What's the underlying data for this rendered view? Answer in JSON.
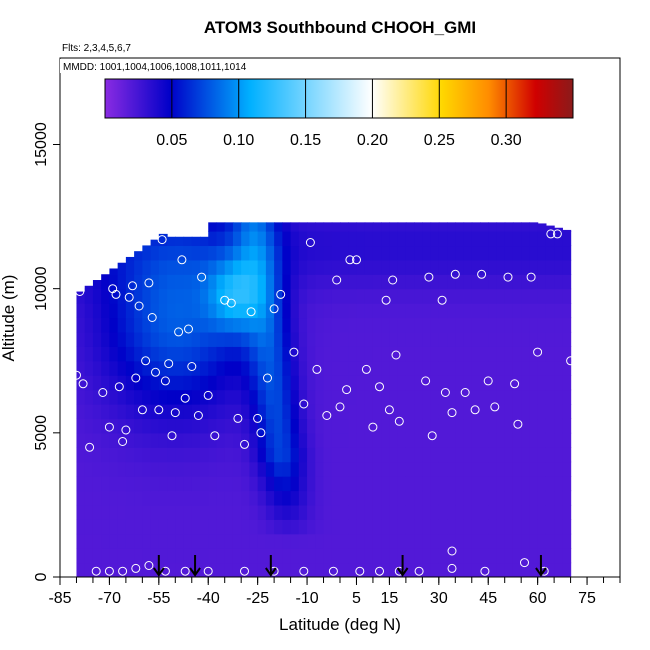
{
  "chart_data": {
    "type": "heatmap",
    "title": "ATOM3 Southbound CHOOH_GMI",
    "flights_note": "Flts: 2,3,4,5,6,7",
    "dates_note": "MMDD: 1001,1004,1006,1008,1011,1014",
    "xlabel": "Latitude (deg N)",
    "ylabel": "Altitude (m)",
    "xlim": [
      -85,
      85
    ],
    "ylim": [
      0,
      18000
    ],
    "x_ticks": [
      -85,
      -70,
      -55,
      -40,
      -25,
      -10,
      5,
      15,
      30,
      45,
      60,
      75
    ],
    "y_ticks": [
      0,
      5000,
      10000,
      15000
    ],
    "colorbar": {
      "range": [
        0.0,
        0.35
      ],
      "ticks": [
        0.05,
        0.1,
        0.15,
        0.2,
        0.25,
        0.3
      ],
      "tick_labels": [
        "0.05",
        "0.10",
        "0.15",
        "0.20",
        "0.25",
        "0.30"
      ],
      "colors": [
        "#8a2be2",
        "#0000c8",
        "#00b0ff",
        "#ffffff",
        "#ffd700",
        "#ff8c00",
        "#d00000",
        "#8b1a1a"
      ]
    },
    "field_extent": {
      "lat": [
        -80,
        70
      ],
      "alt": [
        0,
        12500
      ]
    },
    "features": [
      {
        "name": "mid-latitude southern column high values",
        "lat_range": [
          -70,
          -30
        ],
        "alt_range": [
          2000,
          12000
        ],
        "value": 0.12
      },
      {
        "name": "equatorial wedge",
        "lat_range": [
          -35,
          -5
        ],
        "alt_range": [
          1000,
          12500
        ],
        "value": 0.1
      }
    ],
    "arrow_latitudes": [
      -55,
      -44,
      -21,
      19,
      61
    ],
    "observation_points": [
      {
        "lat": -80,
        "alt": 7000
      },
      {
        "lat": -79,
        "alt": 9900
      },
      {
        "lat": -78,
        "alt": 6700
      },
      {
        "lat": -76,
        "alt": 4500
      },
      {
        "lat": -72,
        "alt": 6400
      },
      {
        "lat": -70,
        "alt": 5200
      },
      {
        "lat": -69,
        "alt": 10000
      },
      {
        "lat": -68,
        "alt": 9800
      },
      {
        "lat": -67,
        "alt": 6600
      },
      {
        "lat": -66,
        "alt": 4700
      },
      {
        "lat": -65,
        "alt": 5100
      },
      {
        "lat": -64,
        "alt": 9700
      },
      {
        "lat": -63,
        "alt": 10100
      },
      {
        "lat": -62,
        "alt": 6900
      },
      {
        "lat": -61,
        "alt": 9400
      },
      {
        "lat": -60,
        "alt": 5800
      },
      {
        "lat": -59,
        "alt": 7500
      },
      {
        "lat": -58,
        "alt": 10200
      },
      {
        "lat": -57,
        "alt": 9000
      },
      {
        "lat": -56,
        "alt": 7100
      },
      {
        "lat": -55,
        "alt": 5800
      },
      {
        "lat": -54,
        "alt": 11700
      },
      {
        "lat": -53,
        "alt": 6800
      },
      {
        "lat": -52,
        "alt": 7400
      },
      {
        "lat": -51,
        "alt": 4900
      },
      {
        "lat": -50,
        "alt": 5700
      },
      {
        "lat": -49,
        "alt": 8500
      },
      {
        "lat": -48,
        "alt": 11000
      },
      {
        "lat": -47,
        "alt": 6200
      },
      {
        "lat": -46,
        "alt": 8600
      },
      {
        "lat": -45,
        "alt": 7300
      },
      {
        "lat": -43,
        "alt": 5600
      },
      {
        "lat": -42,
        "alt": 10400
      },
      {
        "lat": -40,
        "alt": 6300
      },
      {
        "lat": -38,
        "alt": 4900
      },
      {
        "lat": -35,
        "alt": 9600
      },
      {
        "lat": -33,
        "alt": 9500
      },
      {
        "lat": -31,
        "alt": 5500
      },
      {
        "lat": -29,
        "alt": 4600
      },
      {
        "lat": -27,
        "alt": 9200
      },
      {
        "lat": -25,
        "alt": 5500
      },
      {
        "lat": -24,
        "alt": 5000
      },
      {
        "lat": -22,
        "alt": 6900
      },
      {
        "lat": -20,
        "alt": 9300
      },
      {
        "lat": -18,
        "alt": 9800
      },
      {
        "lat": -14,
        "alt": 7800
      },
      {
        "lat": -11,
        "alt": 6000
      },
      {
        "lat": -9,
        "alt": 11600
      },
      {
        "lat": -7,
        "alt": 7200
      },
      {
        "lat": -4,
        "alt": 5600
      },
      {
        "lat": -1,
        "alt": 10300
      },
      {
        "lat": 0,
        "alt": 5900
      },
      {
        "lat": 2,
        "alt": 6500
      },
      {
        "lat": 3,
        "alt": 11000
      },
      {
        "lat": 5,
        "alt": 11000
      },
      {
        "lat": 8,
        "alt": 7200
      },
      {
        "lat": 10,
        "alt": 5200
      },
      {
        "lat": 12,
        "alt": 6600
      },
      {
        "lat": 14,
        "alt": 9600
      },
      {
        "lat": 15,
        "alt": 5800
      },
      {
        "lat": 16,
        "alt": 10300
      },
      {
        "lat": 17,
        "alt": 7700
      },
      {
        "lat": 18,
        "alt": 5400
      },
      {
        "lat": 26,
        "alt": 6800
      },
      {
        "lat": 27,
        "alt": 10400
      },
      {
        "lat": 28,
        "alt": 4900
      },
      {
        "lat": 31,
        "alt": 9600
      },
      {
        "lat": 32,
        "alt": 6400
      },
      {
        "lat": 34,
        "alt": 5700
      },
      {
        "lat": 35,
        "alt": 10500
      },
      {
        "lat": 38,
        "alt": 6400
      },
      {
        "lat": 41,
        "alt": 5800
      },
      {
        "lat": 43,
        "alt": 10500
      },
      {
        "lat": 45,
        "alt": 6800
      },
      {
        "lat": 47,
        "alt": 5900
      },
      {
        "lat": 51,
        "alt": 10400
      },
      {
        "lat": 53,
        "alt": 6700
      },
      {
        "lat": 54,
        "alt": 5300
      },
      {
        "lat": 58,
        "alt": 10400
      },
      {
        "lat": 60,
        "alt": 7800
      },
      {
        "lat": 64,
        "alt": 11900
      },
      {
        "lat": 66,
        "alt": 11900
      },
      {
        "lat": 70,
        "alt": 7500
      },
      {
        "lat": 72,
        "alt": 1400
      },
      {
        "lat": 34,
        "alt": 900
      },
      {
        "lat": 56,
        "alt": 500
      },
      {
        "lat": -74,
        "alt": 200
      },
      {
        "lat": -70,
        "alt": 200
      },
      {
        "lat": -66,
        "alt": 200
      },
      {
        "lat": -62,
        "alt": 300
      },
      {
        "lat": -58,
        "alt": 400
      },
      {
        "lat": -53,
        "alt": 200
      },
      {
        "lat": -47,
        "alt": 200
      },
      {
        "lat": -40,
        "alt": 200
      },
      {
        "lat": -29,
        "alt": 200
      },
      {
        "lat": -20,
        "alt": 200
      },
      {
        "lat": -11,
        "alt": 200
      },
      {
        "lat": -2,
        "alt": 200
      },
      {
        "lat": 6,
        "alt": 200
      },
      {
        "lat": 12,
        "alt": 200
      },
      {
        "lat": 18,
        "alt": 200
      },
      {
        "lat": 24,
        "alt": 200
      },
      {
        "lat": 34,
        "alt": 300
      },
      {
        "lat": 44,
        "alt": 200
      },
      {
        "lat": 62,
        "alt": 200
      }
    ]
  }
}
